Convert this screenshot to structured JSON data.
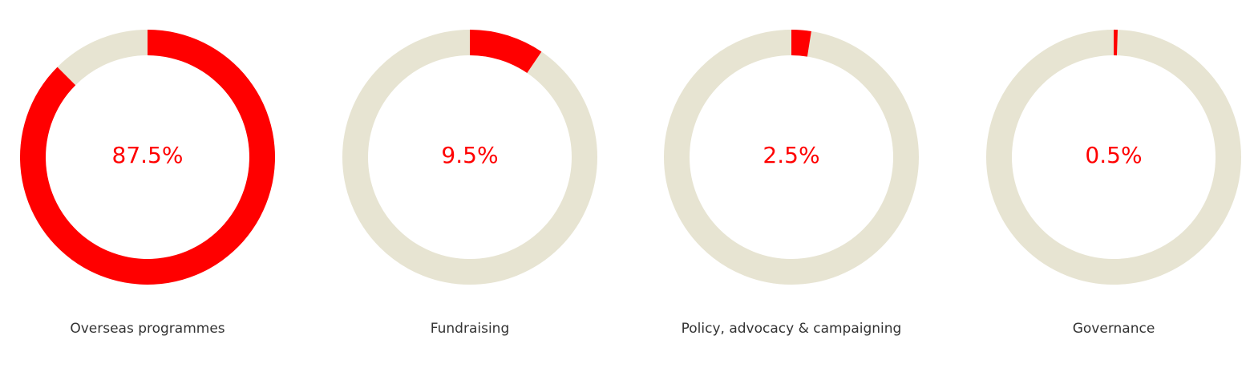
{
  "colors": {
    "accent": "#ff0000",
    "track": "#e7e4d2",
    "label_text": "#333333"
  },
  "chart_data": [
    {
      "type": "pie",
      "label": "Overseas programmes",
      "value": 87.5,
      "display": "87.5%"
    },
    {
      "type": "pie",
      "label": "Fundraising",
      "value": 9.5,
      "display": "9.5%"
    },
    {
      "type": "pie",
      "label": "Policy, advocacy & campaigning",
      "value": 2.5,
      "display": "2.5%"
    },
    {
      "type": "pie",
      "label": "Governance",
      "value": 0.5,
      "display": "0.5%"
    }
  ]
}
